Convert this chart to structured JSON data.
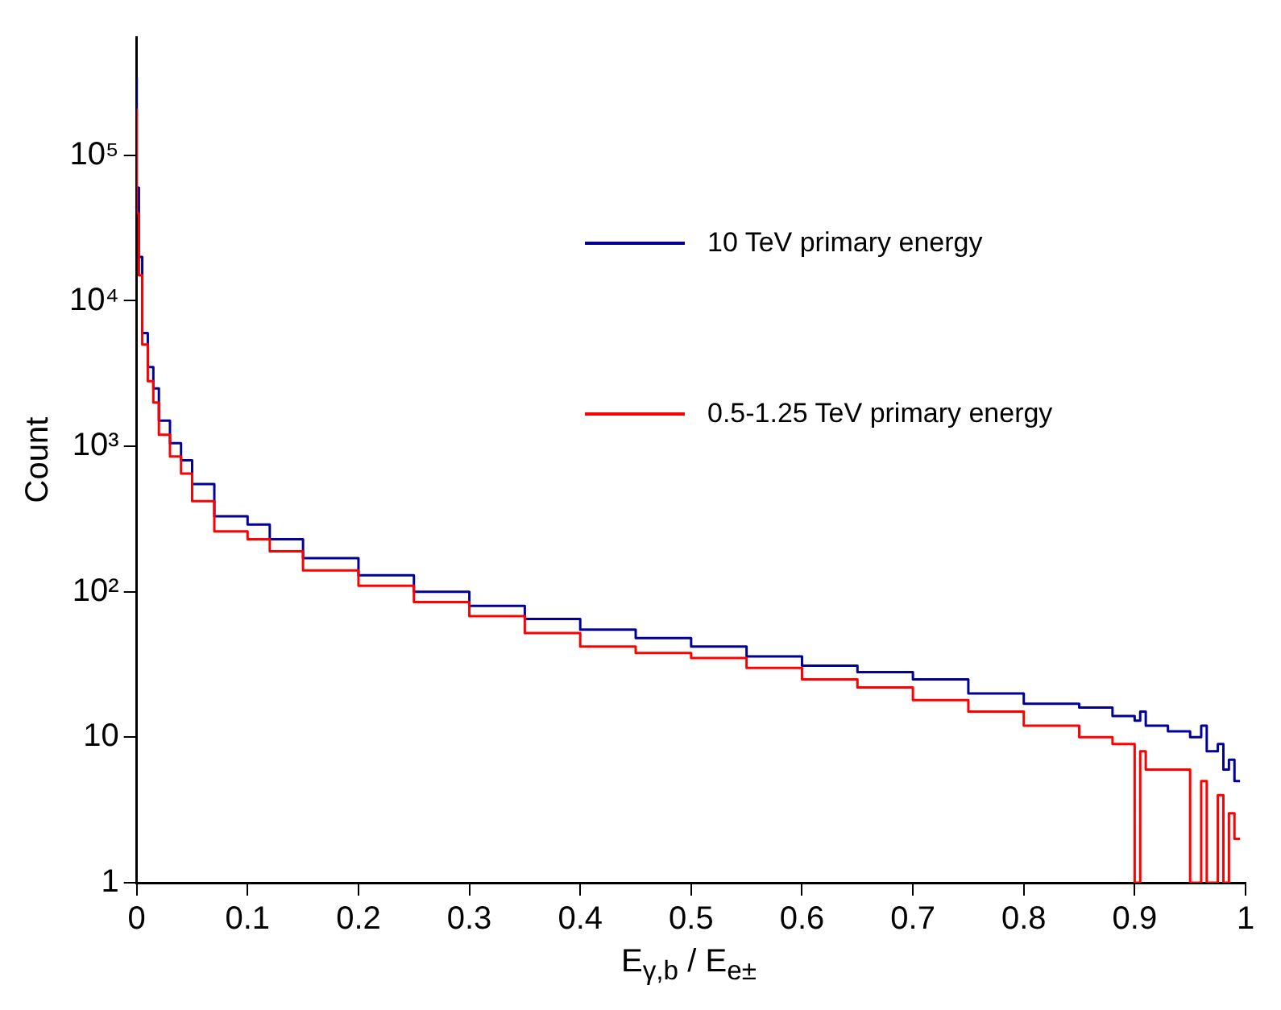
{
  "chart_data": {
    "type": "step",
    "xlabel": "E$_{γ,b}$ / E$_{e±}$",
    "ylabel": "Count",
    "log": "y",
    "legend": "top right",
    "grid": false,
    "xlim": [
      0,
      1
    ],
    "xticks": [
      0,
      0.1,
      0.2,
      0.3,
      0.4,
      0.5,
      0.6,
      0.7,
      0.8,
      0.9,
      1
    ],
    "ylim": [
      1,
      650000
    ],
    "yticks": [
      1,
      10,
      {
        "value": 100,
        "label": "10²"
      },
      {
        "value": 1000,
        "label": "10³"
      },
      {
        "value": 10000,
        "label": "10⁴"
      },
      {
        "value": 100000,
        "label": "10⁵"
      }
    ],
    "x": [
      0,
      0.002,
      0.005,
      0.01,
      0.015,
      0.02,
      0.03,
      0.04,
      0.05,
      0.07,
      0.1,
      0.12,
      0.15,
      0.2,
      0.25,
      0.3,
      0.35,
      0.4,
      0.45,
      0.5,
      0.55,
      0.6,
      0.65,
      0.7,
      0.75,
      0.8,
      0.85,
      0.88,
      0.9,
      0.905,
      0.91,
      0.93,
      0.95,
      0.96,
      0.965,
      0.975,
      0.98,
      0.985,
      0.99,
      0.995
    ],
    "series": [
      {
        "name": "10 TeV primary energy",
        "color": "#000099",
        "values": [
          340000,
          60000,
          20000,
          6000,
          3500,
          2500,
          1500,
          1050,
          800,
          550,
          330,
          290,
          230,
          170,
          130,
          100,
          80,
          65,
          55,
          48,
          42,
          36,
          31,
          28,
          25,
          20,
          17,
          16,
          14,
          13,
          15,
          12,
          11,
          10,
          12,
          8,
          9,
          6,
          7,
          5
        ]
      },
      {
        "name": "0.5-1.25 TeV primary energy",
        "color": "#ff0000",
        "values": [
          210000,
          40000,
          15000,
          5000,
          2800,
          2000,
          1200,
          850,
          650,
          420,
          260,
          230,
          190,
          140,
          110,
          85,
          68,
          52,
          42,
          38,
          35,
          30,
          25,
          22,
          18,
          15,
          12,
          10,
          9,
          1,
          8,
          6,
          6,
          1,
          5,
          1,
          4,
          1,
          3,
          2
        ]
      }
    ]
  }
}
